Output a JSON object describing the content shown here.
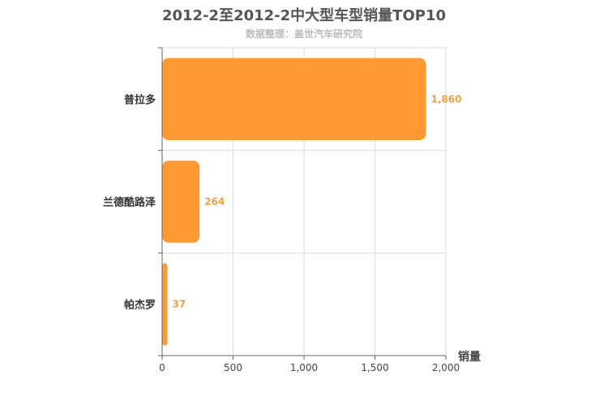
{
  "chart_data": {
    "type": "bar",
    "orientation": "horizontal",
    "title": "2012-2至2012-2中大型车型销量TOP10",
    "subtitle": "数据整理：盖世汽车研究院",
    "categories": [
      "普拉多",
      "兰德酷路泽",
      "帕杰罗"
    ],
    "values": [
      1860,
      264,
      37
    ],
    "value_labels": [
      "1,860",
      "264",
      "37"
    ],
    "xlabel": "销量",
    "xlim": [
      0,
      2000
    ],
    "xticks": [
      0,
      500,
      1000,
      1500,
      2000
    ],
    "xtick_labels": [
      "0",
      "500",
      "1,000",
      "1,500",
      "2,000"
    ],
    "grid": true,
    "bar_color": "#ff9933"
  }
}
